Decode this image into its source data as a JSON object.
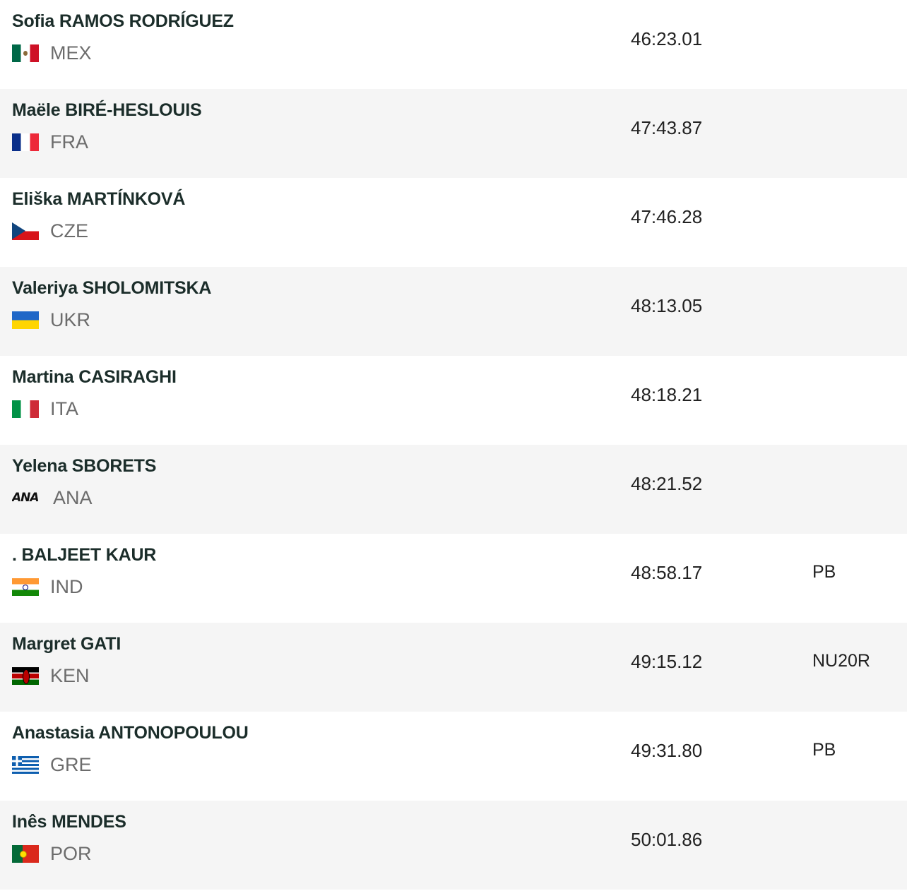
{
  "results": [
    {
      "name": "Sofia RAMOS RODRÍGUEZ",
      "country": "MEX",
      "flag_icon": "mexico-flag-icon",
      "time": "46:23.01",
      "note": ""
    },
    {
      "name": "Maële BIRÉ-HESLOUIS",
      "country": "FRA",
      "flag_icon": "france-flag-icon",
      "time": "47:43.87",
      "note": ""
    },
    {
      "name": "Eliška MARTÍNKOVÁ",
      "country": "CZE",
      "flag_icon": "czechia-flag-icon",
      "time": "47:46.28",
      "note": ""
    },
    {
      "name": "Valeriya SHOLOMITSKA",
      "country": "UKR",
      "flag_icon": "ukraine-flag-icon",
      "time": "48:13.05",
      "note": ""
    },
    {
      "name": "Martina CASIRAGHI",
      "country": "ITA",
      "flag_icon": "italy-flag-icon",
      "time": "48:18.21",
      "note": ""
    },
    {
      "name": "Yelena SBORETS",
      "country": "ANA",
      "flag_icon": "ana-logo-icon",
      "flag_text": "ANA",
      "time": "48:21.52",
      "note": ""
    },
    {
      "name": ". BALJEET KAUR",
      "country": "IND",
      "flag_icon": "india-flag-icon",
      "time": "48:58.17",
      "note": "PB"
    },
    {
      "name": "Margret GATI",
      "country": "KEN",
      "flag_icon": "kenya-flag-icon",
      "time": "49:15.12",
      "note": "NU20R"
    },
    {
      "name": "Anastasia ANTONOPOULOU",
      "country": "GRE",
      "flag_icon": "greece-flag-icon",
      "time": "49:31.80",
      "note": "PB"
    },
    {
      "name": "Inês MENDES",
      "country": "POR",
      "flag_icon": "portugal-flag-icon",
      "time": "50:01.86",
      "note": ""
    }
  ]
}
